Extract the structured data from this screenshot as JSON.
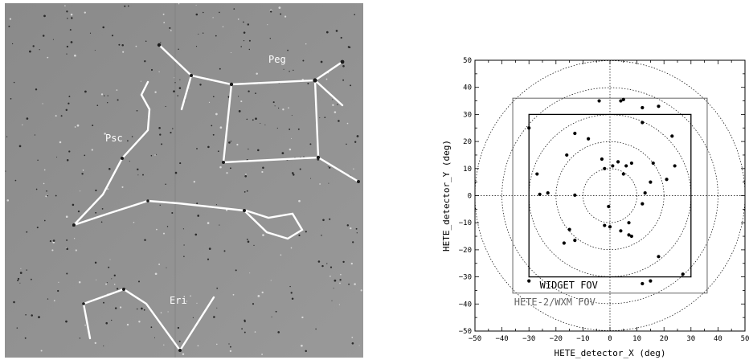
{
  "sky_image": {
    "labels": [
      {
        "id": "peg",
        "text": "Peg"
      },
      {
        "id": "psc",
        "text": "Psc"
      },
      {
        "id": "eri",
        "text": "Eri"
      }
    ],
    "colors": {
      "background": "#8f8f8f",
      "lines": "#ffffff",
      "labels": "#ffffff"
    }
  },
  "chart_data": {
    "type": "scatter",
    "xlabel": "HETE_detector_X (deg)",
    "ylabel": "HETE_detector_Y (deg)",
    "xlim": [
      -50,
      50
    ],
    "ylim": [
      -50,
      50
    ],
    "xticks": [
      -50,
      -40,
      -30,
      -20,
      -10,
      0,
      10,
      20,
      30,
      40,
      50
    ],
    "yticks": [
      -50,
      -40,
      -30,
      -20,
      -10,
      0,
      10,
      20,
      30,
      40,
      50
    ],
    "xtick_labels": [
      "−50",
      "−40",
      "−30",
      "−20",
      "−10",
      "0",
      "10",
      "20",
      "30",
      "40",
      "50"
    ],
    "ytick_labels": [
      "−50",
      "−40",
      "−30",
      "−20",
      "−10",
      "0",
      "10",
      "20",
      "30",
      "40",
      "50"
    ],
    "grid": "dotted crosshair at 0 and dotted concentric circles",
    "circles_radius": [
      10,
      20,
      30,
      40,
      50
    ],
    "fov_boxes": [
      {
        "label": "WIDGET FOV",
        "x": [
          -30,
          30
        ],
        "y": [
          -30,
          30
        ],
        "color": "#000000"
      },
      {
        "label": "HETE-2/WXM FOV",
        "x": [
          -36,
          36
        ],
        "y": [
          -36,
          36
        ],
        "color": "#666666"
      }
    ],
    "points": [
      [
        -30,
        25
      ],
      [
        -4,
        35
      ],
      [
        4,
        35
      ],
      [
        5,
        35.5
      ],
      [
        12,
        32.5
      ],
      [
        18,
        33
      ],
      [
        12,
        27
      ],
      [
        23,
        22
      ],
      [
        -13,
        23
      ],
      [
        -8,
        21
      ],
      [
        -16,
        15
      ],
      [
        24,
        11
      ],
      [
        -27,
        8
      ],
      [
        -3,
        13.5
      ],
      [
        3,
        12.5
      ],
      [
        -2,
        10
      ],
      [
        1,
        11
      ],
      [
        6,
        11
      ],
      [
        8,
        12
      ],
      [
        16,
        12
      ],
      [
        5,
        8
      ],
      [
        -26,
        0.5
      ],
      [
        -23,
        1
      ],
      [
        -13,
        0.2
      ],
      [
        13,
        1
      ],
      [
        -0.5,
        -4
      ],
      [
        12,
        -3
      ],
      [
        21,
        6
      ],
      [
        15,
        5
      ],
      [
        7,
        -10
      ],
      [
        -2,
        -11
      ],
      [
        0,
        -11.5
      ],
      [
        4,
        -13
      ],
      [
        7,
        -14.5
      ],
      [
        8,
        -15
      ],
      [
        -17,
        -17.5
      ],
      [
        -15,
        -12.5
      ],
      [
        -13,
        -16.5
      ],
      [
        18,
        -22.5
      ],
      [
        -30,
        -31.5
      ],
      [
        12,
        -32.5
      ],
      [
        15,
        -31.5
      ],
      [
        27,
        -29
      ]
    ]
  }
}
